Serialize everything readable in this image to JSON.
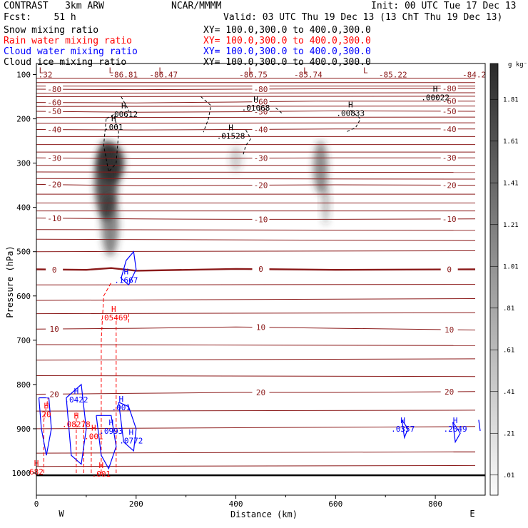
{
  "header": {
    "model": "CONTRAST   3km ARW",
    "institution": "NCAR/MMMM",
    "init": "Init: 00 UTC Tue 17 Dec 13",
    "fcst": "Fcst:    51 h",
    "valid": "Valid: 03 UTC Thu 19 Dec 13 (13 ChT Thu 19 Dec 13)"
  },
  "fields": [
    {
      "name": "Snow mixing ratio",
      "xy": "XY= 100.0,300.0 to 400.0,300.0",
      "color": "#000000"
    },
    {
      "name": "Rain water mixing ratio",
      "xy": "XY= 100.0,300.0 to 400.0,300.0",
      "color": "#ff0000"
    },
    {
      "name": "Cloud water mixing ratio",
      "xy": "XY= 100.0,300.0 to 400.0,300.0",
      "color": "#0000ff"
    },
    {
      "name": "Cloud ice mixing ratio",
      "xy": "XY= 100.0,300.0 to 400.0,300.0",
      "color": "#000000"
    }
  ],
  "chart_data": {
    "type": "contour",
    "xlabel": "Distance (km)",
    "ylabel": "Pressure (hPa)",
    "xlim": [
      0,
      900
    ],
    "ylim": [
      1050,
      75
    ],
    "xticks": [
      0,
      200,
      400,
      600,
      800
    ],
    "yticks": [
      100,
      200,
      300,
      400,
      500,
      600,
      700,
      800,
      900,
      1000
    ],
    "x_end_labels": {
      "left": "W",
      "right": "E"
    },
    "colorbar": {
      "unit": "g kg⁻¹",
      "levels": [
        "1.81",
        "1.61",
        "1.41",
        "1.21",
        "1.01",
        ".81",
        ".61",
        ".41",
        ".21",
        ".01"
      ]
    },
    "temperature_contours": [
      {
        "label": "-80",
        "points": [
          [
            0,
            133
          ],
          [
            200,
            134
          ],
          [
            400,
            133
          ],
          [
            600,
            132
          ],
          [
            880,
            131
          ]
        ]
      },
      {
        "label": "-60",
        "points": [
          [
            0,
            163
          ],
          [
            200,
            164
          ],
          [
            400,
            162
          ],
          [
            560,
            160
          ],
          [
            880,
            160
          ]
        ]
      },
      {
        "label": "-50",
        "points": [
          [
            0,
            183
          ],
          [
            200,
            185
          ],
          [
            400,
            184
          ],
          [
            600,
            182
          ],
          [
            880,
            183
          ]
        ]
      },
      {
        "label": "-40",
        "points": [
          [
            0,
            224
          ],
          [
            200,
            225
          ],
          [
            400,
            224
          ],
          [
            600,
            223
          ],
          [
            880,
            223
          ]
        ]
      },
      {
        "label": "-30",
        "points": [
          [
            0,
            288
          ],
          [
            200,
            290
          ],
          [
            400,
            289
          ],
          [
            600,
            288
          ],
          [
            880,
            288
          ]
        ]
      },
      {
        "label": "-20",
        "points": [
          [
            0,
            348
          ],
          [
            200,
            351
          ],
          [
            400,
            350
          ],
          [
            600,
            349
          ],
          [
            880,
            350
          ]
        ]
      },
      {
        "label": "-10",
        "points": [
          [
            0,
            424
          ],
          [
            200,
            426
          ],
          [
            400,
            427
          ],
          [
            600,
            427
          ],
          [
            880,
            426
          ]
        ]
      },
      {
        "label": "0",
        "points": [
          [
            0,
            540
          ],
          [
            100,
            541
          ],
          [
            150,
            537
          ],
          [
            200,
            543
          ],
          [
            400,
            539
          ],
          [
            600,
            541
          ],
          [
            880,
            540
          ]
        ]
      },
      {
        "label": "10",
        "points": [
          [
            0,
            675
          ],
          [
            200,
            673
          ],
          [
            400,
            670
          ],
          [
            600,
            673
          ],
          [
            880,
            677
          ]
        ]
      },
      {
        "label": "20",
        "points": [
          [
            0,
            822
          ],
          [
            200,
            820
          ],
          [
            400,
            818
          ],
          [
            600,
            818
          ],
          [
            880,
            816
          ]
        ]
      }
    ],
    "other_isotherms": [
      [
        [
          0,
          108
        ],
        [
          880,
          108
        ]
      ],
      [
        [
          0,
          118
        ],
        [
          880,
          118
        ]
      ],
      [
        [
          0,
          126
        ],
        [
          880,
          126
        ]
      ],
      [
        [
          0,
          142
        ],
        [
          880,
          141
        ]
      ],
      [
        [
          0,
          150
        ],
        [
          880,
          149
        ]
      ],
      [
        [
          0,
          172
        ],
        [
          880,
          171
        ]
      ],
      [
        [
          0,
          197
        ],
        [
          880,
          196
        ]
      ],
      [
        [
          0,
          210
        ],
        [
          880,
          209
        ]
      ],
      [
        [
          0,
          240
        ],
        [
          880,
          240
        ]
      ],
      [
        [
          0,
          258
        ],
        [
          880,
          258
        ]
      ],
      [
        [
          0,
          275
        ],
        [
          880,
          275
        ]
      ],
      [
        [
          0,
          305
        ],
        [
          880,
          305
        ]
      ],
      [
        [
          0,
          320
        ],
        [
          880,
          321
        ]
      ],
      [
        [
          0,
          335
        ],
        [
          880,
          336
        ]
      ],
      [
        [
          0,
          370
        ],
        [
          880,
          370
        ]
      ],
      [
        [
          0,
          390
        ],
        [
          880,
          390
        ]
      ],
      [
        [
          0,
          408
        ],
        [
          880,
          408
        ]
      ],
      [
        [
          0,
          450
        ],
        [
          880,
          452
        ]
      ],
      [
        [
          0,
          472
        ],
        [
          880,
          475
        ]
      ],
      [
        [
          0,
          500
        ],
        [
          880,
          498
        ]
      ],
      [
        [
          0,
          575
        ],
        [
          880,
          574
        ]
      ],
      [
        [
          0,
          610
        ],
        [
          880,
          606
        ]
      ],
      [
        [
          0,
          640
        ],
        [
          880,
          638
        ]
      ],
      [
        [
          0,
          710
        ],
        [
          880,
          712
        ]
      ],
      [
        [
          0,
          745
        ],
        [
          880,
          742
        ]
      ],
      [
        [
          0,
          780
        ],
        [
          880,
          782
        ]
      ],
      [
        [
          0,
          860
        ],
        [
          880,
          858
        ]
      ],
      [
        [
          0,
          900
        ],
        [
          880,
          895
        ]
      ],
      [
        [
          0,
          955
        ],
        [
          880,
          952
        ]
      ],
      [
        [
          0,
          985
        ],
        [
          880,
          983
        ]
      ]
    ],
    "labels_L": [
      {
        "x": 10,
        "p": 90,
        "text": "L"
      },
      {
        "x": 150,
        "p": 90,
        "text": "L"
      },
      {
        "x": 250,
        "p": 90,
        "text": "L"
      },
      {
        "x": 430,
        "p": 90,
        "text": "L"
      },
      {
        "x": 540,
        "p": 90,
        "text": "L"
      },
      {
        "x": 660,
        "p": 90,
        "text": "L"
      }
    ],
    "top_values": [
      {
        "x": 18,
        "p": 100,
        "text": ".32"
      },
      {
        "x": 175,
        "p": 100,
        "text": "-86.81"
      },
      {
        "x": 255,
        "p": 100,
        "text": "-86.47"
      },
      {
        "x": 435,
        "p": 100,
        "text": "-86.75"
      },
      {
        "x": 545,
        "p": 100,
        "text": "-85.74"
      },
      {
        "x": 715,
        "p": 100,
        "text": "-85.22"
      },
      {
        "x": 878,
        "p": 100,
        "text": "-84.2"
      }
    ],
    "snow_maxima": [
      {
        "x": 800,
        "p": 155,
        "text": ".00022"
      },
      {
        "x": 155,
        "p": 222,
        "text": ".001"
      },
      {
        "x": 175,
        "p": 193,
        "text": ".00612"
      },
      {
        "x": 440,
        "p": 178,
        "text": ".01068"
      },
      {
        "x": 390,
        "p": 242,
        "text": ".01528"
      },
      {
        "x": 630,
        "p": 190,
        "text": ".00833"
      }
    ],
    "rain_maxima": [
      {
        "x": 155,
        "p": 652,
        "text": ".05469"
      },
      {
        "x": 80,
        "p": 893,
        "text": ".08278"
      },
      {
        "x": 115,
        "p": 920,
        "text": ".001"
      },
      {
        "x": 130,
        "p": 1005,
        "text": ".001"
      },
      {
        "x": 0,
        "p": 1000,
        "text": "682"
      },
      {
        "x": 20,
        "p": 870,
        "text": "20"
      }
    ],
    "cloud_water_maxima": [
      {
        "x": 180,
        "p": 567,
        "text": ".1667"
      },
      {
        "x": 80,
        "p": 837,
        "text": ".0422"
      },
      {
        "x": 150,
        "p": 908,
        "text": ".0993"
      },
      {
        "x": 190,
        "p": 930,
        "text": ".0772"
      },
      {
        "x": 170,
        "p": 855,
        "text": ".001"
      },
      {
        "x": 735,
        "p": 903,
        "text": ".0357"
      },
      {
        "x": 840,
        "p": 903,
        "text": ".2049"
      }
    ],
    "snow_shading": [
      {
        "x": 150,
        "p": 300,
        "rx": 18,
        "rp": 45,
        "opacity": 0.95
      },
      {
        "x": 140,
        "p": 340,
        "rx": 16,
        "rp": 90,
        "opacity": 0.85
      },
      {
        "x": 148,
        "p": 440,
        "rx": 12,
        "rp": 70,
        "opacity": 0.6
      },
      {
        "x": 400,
        "p": 290,
        "rx": 8,
        "rp": 30,
        "opacity": 0.25
      },
      {
        "x": 570,
        "p": 310,
        "rx": 10,
        "rp": 60,
        "opacity": 0.55
      },
      {
        "x": 580,
        "p": 390,
        "rx": 6,
        "rp": 50,
        "opacity": 0.3
      }
    ]
  }
}
